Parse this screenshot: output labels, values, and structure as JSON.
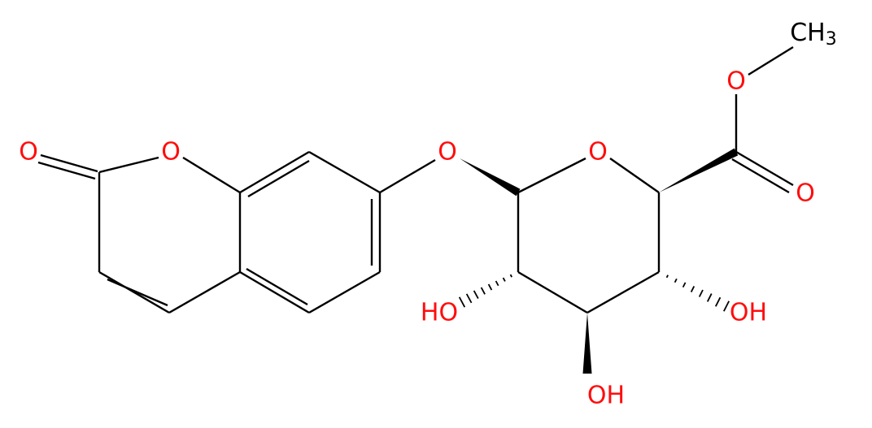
{
  "atoms": {
    "carbonyl_oxygen": "O",
    "ring_oxygen": "O",
    "glycosidic_oxygen": "O",
    "pyranose_oxygen": "O",
    "ester_oxygen": "O",
    "ester_carbonyl_oxygen": "O",
    "hydroxyl_left": "HO",
    "hydroxyl_right": "OH",
    "hydroxyl_bottom": "OH",
    "methyl": {
      "main": "CH",
      "sub": "3"
    }
  }
}
